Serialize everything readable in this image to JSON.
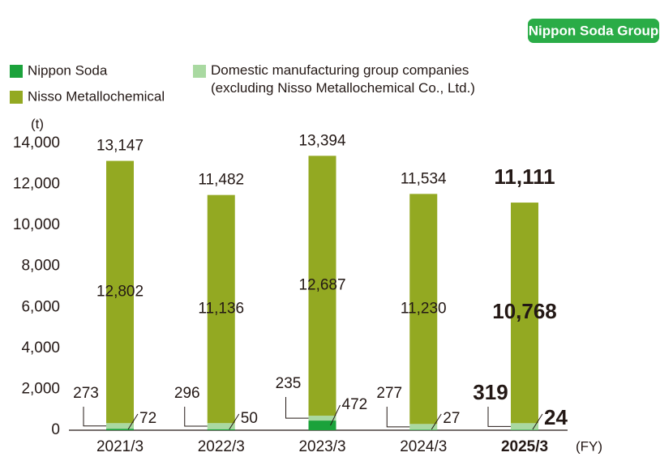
{
  "chart_data": {
    "type": "stacked-bar",
    "badge": "Nippon Soda Group",
    "y_unit": "(t)",
    "x_unit": "(FY)",
    "categories": [
      "2021/3",
      "2022/3",
      "2023/3",
      "2024/3",
      "2025/3"
    ],
    "series": [
      {
        "name": "Nippon Soda",
        "color": "#1ba23b",
        "values": [
          72,
          50,
          472,
          27,
          24
        ]
      },
      {
        "name": "Domestic manufacturing group companies\n(excluding Nisso Metallochemical Co., Ltd.)",
        "color": "#a9d9a1",
        "values": [
          273,
          296,
          235,
          277,
          319
        ]
      },
      {
        "name": "Nisso Metallochemical",
        "color": "#93a922",
        "values": [
          12802,
          11136,
          12687,
          11230,
          10768
        ]
      }
    ],
    "totals": [
      13147,
      11482,
      13394,
      11534,
      11111
    ],
    "value_labels": {
      "0": [
        "72",
        "50",
        "472",
        "27",
        "24"
      ],
      "1": [
        "273",
        "296",
        "235",
        "277",
        "319"
      ],
      "2": [
        "12,802",
        "11,136",
        "12,687",
        "11,230",
        "10,768"
      ]
    },
    "total_labels": [
      "13,147",
      "11,482",
      "13,394",
      "11,534",
      "11,111"
    ],
    "highlight_index": 4,
    "ylim": [
      0,
      14000
    ],
    "yticks": [
      0,
      {
        "value": 2000,
        "label": "2,000"
      },
      {
        "value": 4000,
        "label": "4,000"
      },
      {
        "value": 6000,
        "label": "6,000"
      },
      {
        "value": 8000,
        "label": "8,000"
      },
      {
        "value": 10000,
        "label": "10,000"
      },
      {
        "value": 12000,
        "label": "12,000"
      },
      {
        "value": 14000,
        "label": "14,000"
      }
    ]
  }
}
